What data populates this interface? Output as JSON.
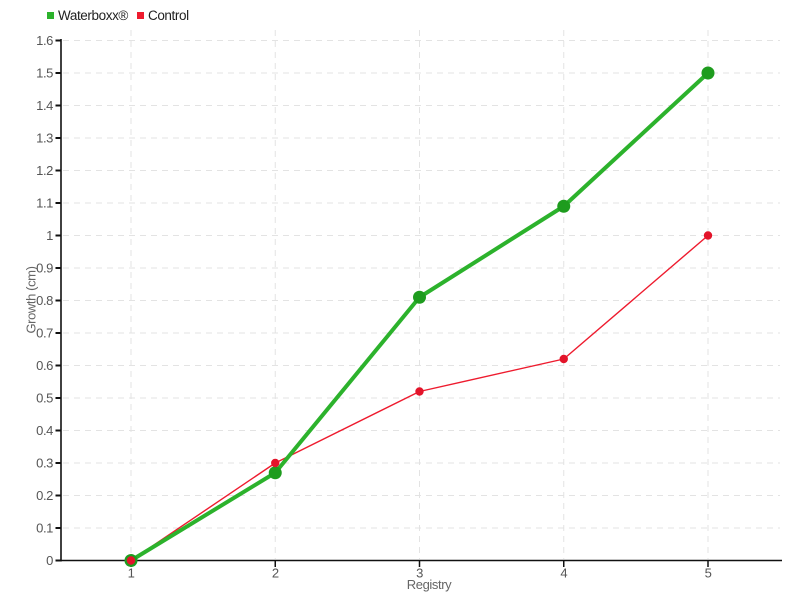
{
  "chart_data": {
    "type": "line",
    "title": "",
    "xlabel": "Registry",
    "ylabel": "Growth (cm)",
    "x": [
      1,
      2,
      3,
      4,
      5
    ],
    "series": [
      {
        "name": "Waterboxx®",
        "color": "#2cb22c",
        "point_color": "#1e9c1e",
        "line_width": 4,
        "point_radius": 6.5,
        "values": [
          0,
          0.27,
          0.81,
          1.09,
          1.5
        ]
      },
      {
        "name": "Control",
        "color": "#ee1b2e",
        "point_color": "#e3142a",
        "line_width": 1.4,
        "point_radius": 4.2,
        "values": [
          0,
          0.3,
          0.52,
          0.62,
          1.0
        ]
      }
    ],
    "xlim": [
      1,
      5
    ],
    "ylim": [
      0,
      1.6
    ],
    "ytick_step": 0.1,
    "grid": true,
    "grid_color": "#e3e3e3",
    "axis_color": "#111111",
    "tick_label_color": "#555555",
    "legend_position": "top-left"
  }
}
